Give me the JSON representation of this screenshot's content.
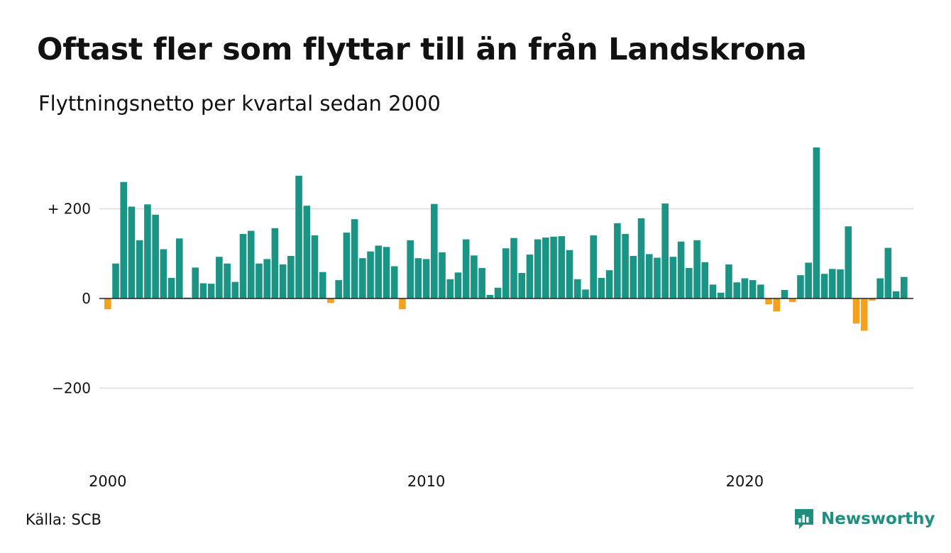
{
  "title": "Oftast fler som flyttar till än från Landskrona",
  "subtitle": "Flyttningsnetto per kvartal sedan 2000",
  "source": "Källa: SCB",
  "brand": {
    "name": "Newsworthy",
    "icon": "newsworthy-logo-icon"
  },
  "colors": {
    "positive": "#1a9585",
    "negative": "#f4a11d",
    "grid": "#dedede",
    "axis": "#222222",
    "brand": "#1f8f7f"
  },
  "chart_data": {
    "type": "bar",
    "title": "Oftast fler som flyttar till än från Landskrona",
    "subtitle": "Flyttningsnetto per kvartal sedan 2000",
    "x_start": "2000-Q1",
    "periodicity": "quarterly",
    "ylim": [
      -340,
      340
    ],
    "y_ticks": [
      {
        "value": 200,
        "label": "+ 200"
      },
      {
        "value": 0,
        "label": "0"
      },
      {
        "value": -200,
        "label": "−200"
      }
    ],
    "x_ticks": [
      {
        "year": 2000,
        "label": "2000"
      },
      {
        "year": 2010,
        "label": "2010"
      },
      {
        "year": 2020,
        "label": "2020"
      }
    ],
    "grid": true,
    "values": [
      -24,
      78,
      260,
      205,
      130,
      210,
      187,
      110,
      46,
      134,
      2,
      69,
      34,
      33,
      93,
      78,
      37,
      144,
      151,
      78,
      88,
      157,
      76,
      95,
      274,
      207,
      141,
      59,
      -10,
      41,
      147,
      177,
      90,
      105,
      118,
      115,
      72,
      -24,
      130,
      90,
      88,
      211,
      103,
      43,
      58,
      132,
      96,
      68,
      8,
      24,
      112,
      135,
      57,
      98,
      132,
      136,
      138,
      139,
      108,
      43,
      20,
      141,
      46,
      63,
      168,
      144,
      95,
      179,
      99,
      91,
      212,
      93,
      127,
      68,
      130,
      81,
      31,
      13,
      76,
      36,
      45,
      41,
      31,
      -13,
      -29,
      19,
      -8,
      52,
      80,
      337,
      55,
      66,
      65,
      161,
      -56,
      -72,
      -5,
      45,
      113,
      16,
      48
    ]
  }
}
